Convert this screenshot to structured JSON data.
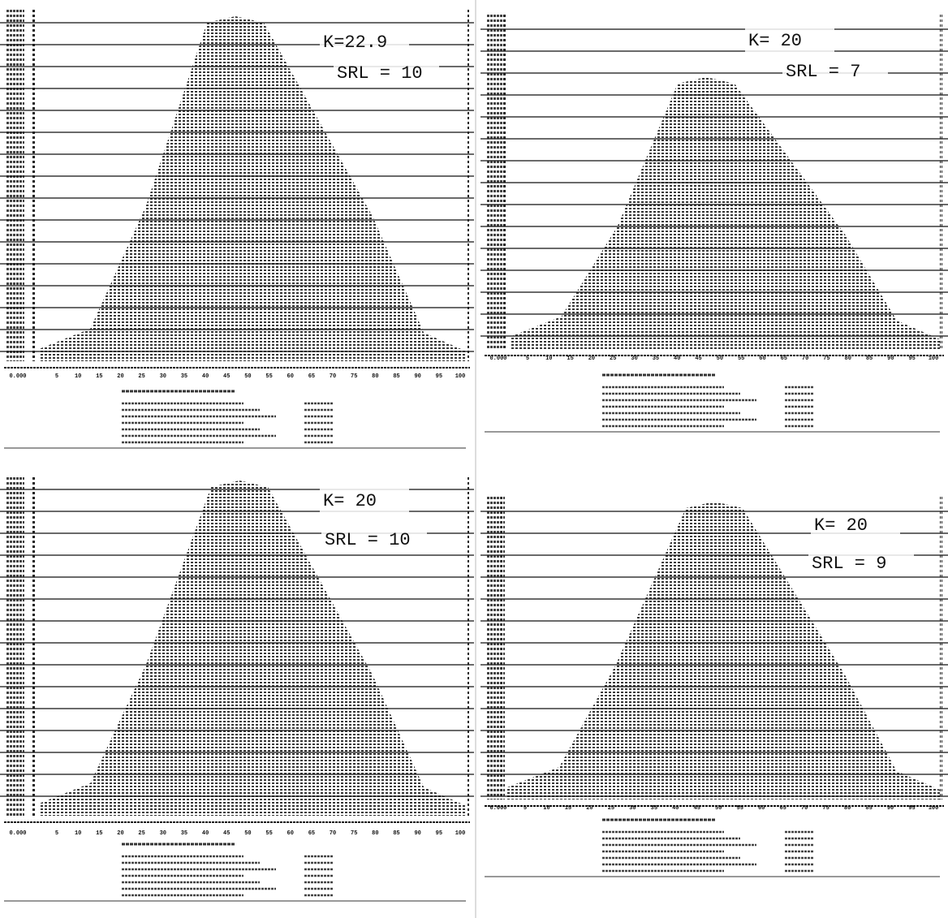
{
  "panels": [
    {
      "k": "K=22.9",
      "srl": "SRL = 10",
      "x_ticks": [
        "0.000",
        "5",
        "10",
        "15",
        "20",
        "25",
        "30",
        "35",
        "40",
        "45",
        "50",
        "55",
        "60",
        "65",
        "70",
        "75",
        "80",
        "85",
        "90",
        "95",
        "100"
      ]
    },
    {
      "k": "K= 20",
      "srl": "SRL = 7",
      "x_ticks": [
        "0.000",
        "5",
        "10",
        "15",
        "20",
        "25",
        "30",
        "35",
        "40",
        "45",
        "50",
        "55",
        "60",
        "65",
        "70",
        "75",
        "80",
        "85",
        "90",
        "95",
        "100"
      ]
    },
    {
      "k": "K= 20",
      "srl": "SRL = 10",
      "x_ticks": [
        "0.000",
        "5",
        "10",
        "15",
        "20",
        "25",
        "30",
        "35",
        "40",
        "45",
        "50",
        "55",
        "60",
        "65",
        "70",
        "75",
        "80",
        "85",
        "90",
        "95",
        "100"
      ]
    },
    {
      "k": "K= 20",
      "srl": "SRL = 9",
      "x_ticks": [
        "0.000",
        "5",
        "10",
        "15",
        "20",
        "25",
        "30",
        "35",
        "40",
        "45",
        "50",
        "55",
        "60",
        "65",
        "70",
        "75",
        "80",
        "85",
        "90",
        "95",
        "100"
      ]
    }
  ]
}
